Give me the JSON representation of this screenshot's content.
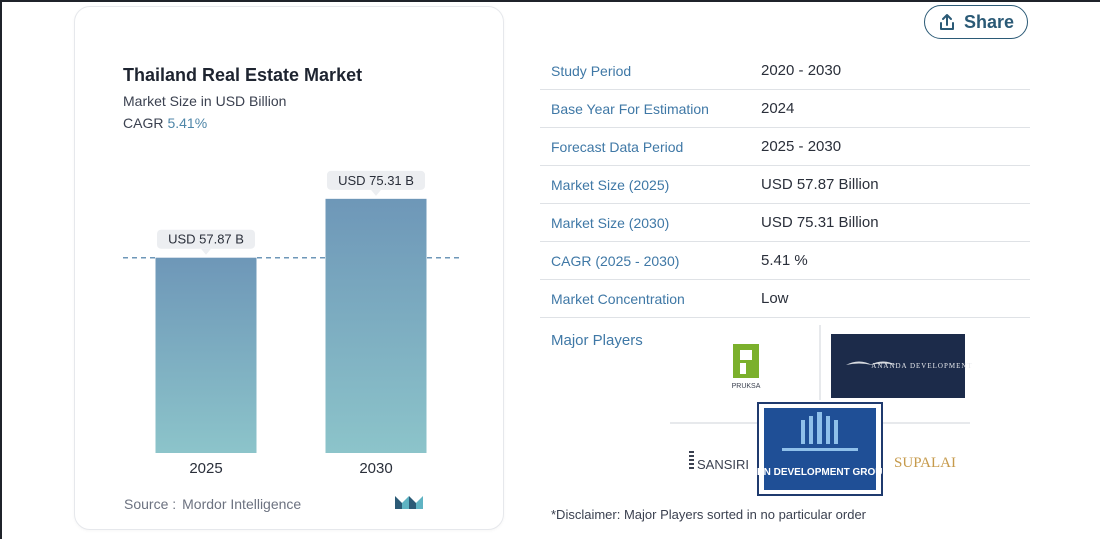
{
  "share": {
    "label": "Share",
    "icon": "share-upload-icon"
  },
  "card": {
    "title": "Thailand Real Estate Market",
    "subtitle": "Market Size in USD Billion",
    "cagr_label": "CAGR",
    "cagr_value": "5.41%",
    "source_label": "Source :",
    "source_value": "Mordor Intelligence"
  },
  "chart_data": {
    "type": "bar",
    "categories": [
      "2025",
      "2030"
    ],
    "values": [
      57.87,
      75.31
    ],
    "value_labels": [
      "USD 57.87 B",
      "USD 75.31 B"
    ],
    "title": "Thailand Real Estate Market",
    "xlabel": "",
    "ylabel": "Market Size in USD Billion",
    "ylim": [
      0,
      80
    ],
    "reference_line": 57.87,
    "colors": {
      "bar_top": "#6e97b8",
      "bar_bottom": "#8cc4ca",
      "label_bg": "#eceef1",
      "dashed": "#6e97b8"
    }
  },
  "info": {
    "rows": [
      {
        "key": "Study Period",
        "value": "2020 - 2030"
      },
      {
        "key": "Base Year For Estimation",
        "value": "2024"
      },
      {
        "key": "Forecast Data Period",
        "value": "2025 - 2030"
      },
      {
        "key": "Market Size (2025)",
        "value": "USD 57.87 Billion"
      },
      {
        "key": "Market Size (2030)",
        "value": "USD 75.31 Billion"
      },
      {
        "key": "CAGR (2025 - 2030)",
        "value": "5.41 %"
      },
      {
        "key": "Market Concentration",
        "value": "Low"
      }
    ],
    "players_label": "Major Players",
    "players": [
      "PRUKSA",
      "ANANDA DEVELOPMENT",
      "SANSIRI",
      "LPN DEVELOPMENT GROUP",
      "SUPALAI"
    ],
    "disclaimer": "*Disclaimer: Major Players sorted in no particular order"
  },
  "colors": {
    "accent": "#3f78a6",
    "share": "#2b5a76"
  }
}
